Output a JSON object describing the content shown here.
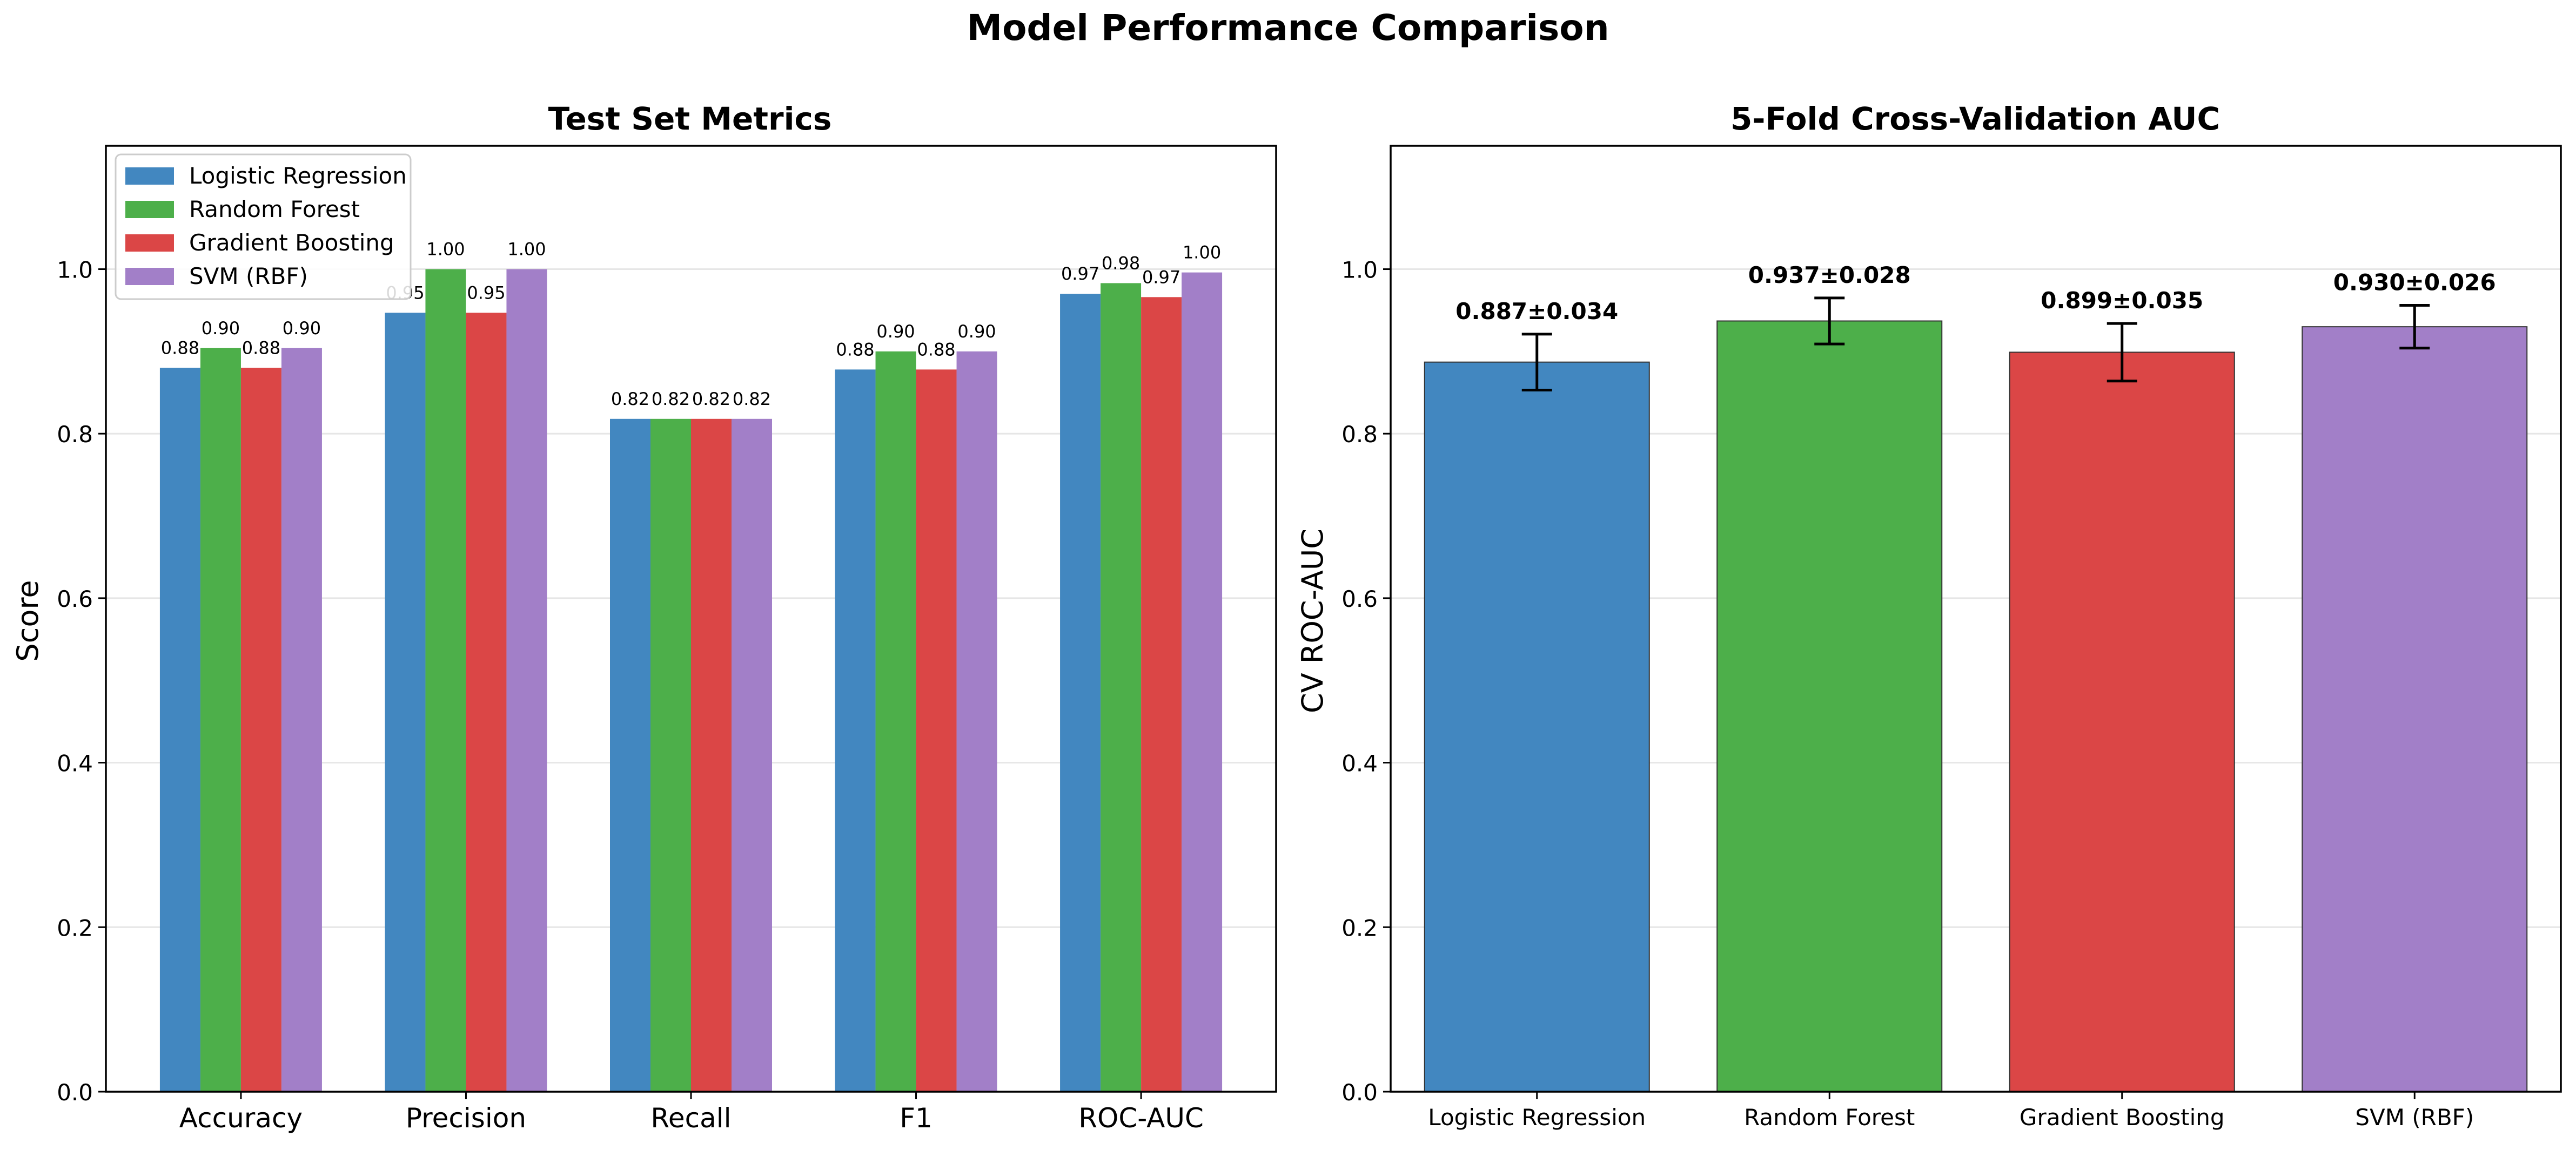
{
  "figure": {
    "title": "Model Performance Comparison"
  },
  "colors": {
    "Logistic Regression": "#4287c0",
    "Random Forest": "#4daf4a",
    "Gradient Boosting": "#db4646",
    "SVM (RBF)": "#a27fc8"
  },
  "chart_data": [
    {
      "type": "bar",
      "title": "Test Set Metrics",
      "xlabel": "",
      "ylabel": "Score",
      "ylim": [
        0,
        1.15
      ],
      "yticks": [
        "0.0",
        "0.2",
        "0.4",
        "0.6",
        "0.8",
        "1.0"
      ],
      "grid": "y",
      "legend": "top-left",
      "categories": [
        "Accuracy",
        "Precision",
        "Recall",
        "F1",
        "ROC-AUC"
      ],
      "series": [
        {
          "name": "Logistic Regression",
          "values": [
            0.88,
            0.947,
            0.818,
            0.878,
            0.97
          ],
          "labels": [
            "0.88",
            "0.95",
            "0.82",
            "0.88",
            "0.97"
          ]
        },
        {
          "name": "Random Forest",
          "values": [
            0.904,
            1.0,
            0.818,
            0.9,
            0.983
          ],
          "labels": [
            "0.90",
            "1.00",
            "0.82",
            "0.90",
            "0.98"
          ]
        },
        {
          "name": "Gradient Boosting",
          "values": [
            0.88,
            0.947,
            0.818,
            0.878,
            0.966
          ],
          "labels": [
            "0.88",
            "0.95",
            "0.82",
            "0.88",
            "0.97"
          ]
        },
        {
          "name": "SVM (RBF)",
          "values": [
            0.904,
            1.0,
            0.818,
            0.9,
            0.996
          ],
          "labels": [
            "0.90",
            "1.00",
            "0.82",
            "0.90",
            "1.00"
          ]
        }
      ]
    },
    {
      "type": "bar",
      "title": "5-Fold Cross-Validation AUC",
      "xlabel": "",
      "ylabel": "CV ROC-AUC",
      "ylim": [
        0,
        1.15
      ],
      "yticks": [
        "0.0",
        "0.2",
        "0.4",
        "0.6",
        "0.8",
        "1.0"
      ],
      "grid": "y",
      "categories": [
        "Logistic Regression",
        "Random Forest",
        "Gradient Boosting",
        "SVM (RBF)"
      ],
      "values": [
        0.887,
        0.937,
        0.899,
        0.93
      ],
      "errors": [
        0.034,
        0.028,
        0.035,
        0.026
      ],
      "labels": [
        "0.887±0.034",
        "0.937±0.028",
        "0.899±0.035",
        "0.930±0.026"
      ]
    }
  ]
}
